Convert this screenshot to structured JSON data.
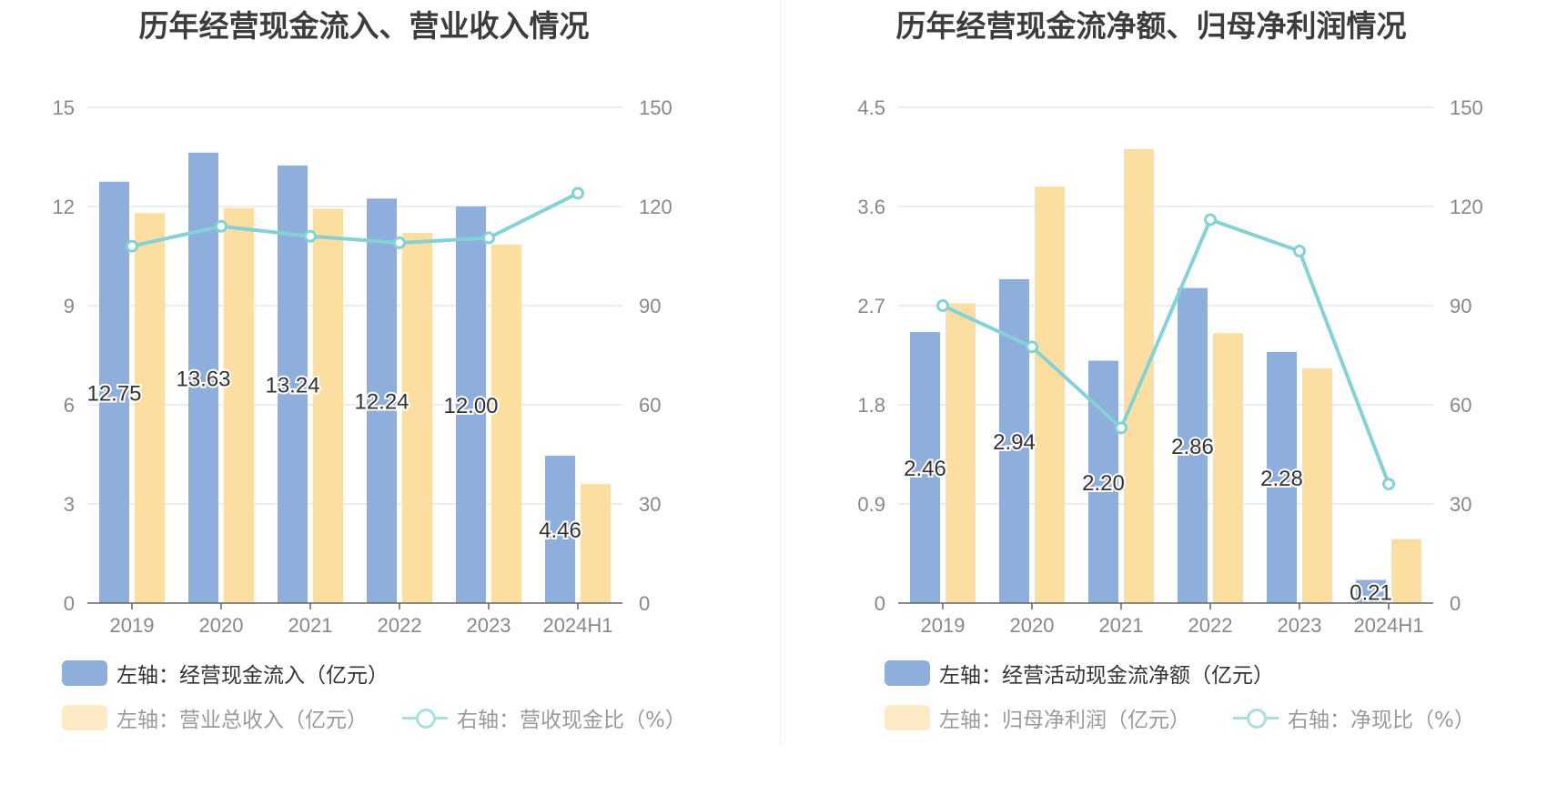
{
  "colors": {
    "bar_primary": "#8eaedb",
    "bar_secondary": "#fddc9c",
    "line": "#82d2d6",
    "grid": "#e3e7f0",
    "axis_text": "#888888"
  },
  "chart_data": [
    {
      "type": "bar",
      "title": "历年经营现金流入、营业收入情况",
      "categories": [
        "2019",
        "2020",
        "2021",
        "2022",
        "2023",
        "2024H1"
      ],
      "left_axis": {
        "ylim": [
          0,
          15
        ],
        "ticks": [
          "0",
          "3",
          "6",
          "9",
          "12",
          "15"
        ]
      },
      "right_axis": {
        "ylim": [
          0,
          150
        ],
        "ticks": [
          "0",
          "30",
          "60",
          "90",
          "120",
          "150"
        ]
      },
      "series": [
        {
          "name": "左轴：经营现金流入（亿元）",
          "type": "bar",
          "axis": "left",
          "values": [
            12.75,
            13.63,
            13.24,
            12.24,
            12.0,
            4.46
          ],
          "labels": [
            "12.75",
            "13.63",
            "13.24",
            "12.24",
            "12.00",
            "4.46"
          ]
        },
        {
          "name": "左轴：营业总收入（亿元）",
          "type": "bar",
          "axis": "left",
          "values": [
            11.8,
            11.95,
            11.93,
            11.2,
            10.85,
            3.6
          ]
        },
        {
          "name": "右轴：营收现金比（%）",
          "type": "line",
          "axis": "right",
          "values": [
            108,
            114,
            111,
            109,
            110.5,
            124
          ]
        }
      ],
      "grid": true,
      "legend_position": "bottom"
    },
    {
      "type": "bar",
      "title": "历年经营现金流净额、归母净利润情况",
      "categories": [
        "2019",
        "2020",
        "2021",
        "2022",
        "2023",
        "2024H1"
      ],
      "left_axis": {
        "ylim": [
          0,
          4.5
        ],
        "ticks": [
          "0",
          "0.9",
          "1.8",
          "2.7",
          "3.6",
          "4.5"
        ]
      },
      "right_axis": {
        "ylim": [
          0,
          150
        ],
        "ticks": [
          "0",
          "30",
          "60",
          "90",
          "120",
          "150"
        ]
      },
      "series": [
        {
          "name": "左轴：经营活动现金流净额（亿元）",
          "type": "bar",
          "axis": "left",
          "values": [
            2.46,
            2.94,
            2.2,
            2.86,
            2.28,
            0.21
          ],
          "labels": [
            "2.46",
            "2.94",
            "2.20",
            "2.86",
            "2.28",
            "0.21"
          ]
        },
        {
          "name": "左轴：归母净利润（亿元）",
          "type": "bar",
          "axis": "left",
          "values": [
            2.72,
            3.78,
            4.12,
            2.45,
            2.13,
            0.58
          ]
        },
        {
          "name": "右轴：净现比（%）",
          "type": "line",
          "axis": "right",
          "values": [
            90,
            77.5,
            53,
            116,
            106.5,
            36
          ]
        }
      ],
      "grid": true,
      "legend_position": "bottom"
    }
  ]
}
